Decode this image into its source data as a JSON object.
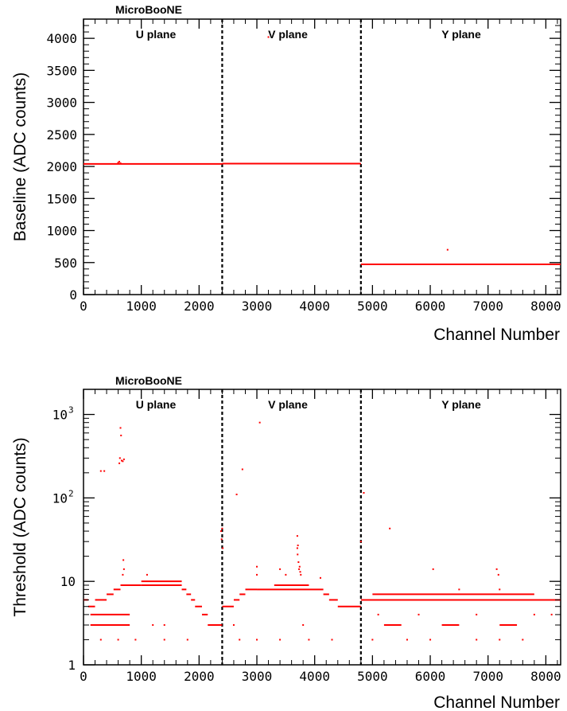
{
  "chart_data": [
    {
      "type": "scatter",
      "brand": "MicroBooNE",
      "xlabel": "Channel Number",
      "ylabel": "Baseline (ADC counts)",
      "xlim": [
        0,
        8256
      ],
      "ylim": [
        0,
        4300
      ],
      "yscale": "linear",
      "xticks": [
        "0",
        "1000",
        "2000",
        "3000",
        "4000",
        "5000",
        "6000",
        "7000",
        "8000"
      ],
      "yticks": [
        "0",
        "500",
        "1000",
        "1500",
        "2000",
        "2500",
        "3000",
        "3500",
        "4000"
      ],
      "plane_boundaries": [
        2400,
        4800
      ],
      "planes": [
        "U plane",
        "V plane",
        "Y plane"
      ],
      "marker_color": "#ff0000",
      "series": [
        {
          "segments": [
            {
              "x": [
                0,
                2400
              ],
              "y": 2040
            },
            {
              "x": [
                2400,
                4800
              ],
              "y": 2045
            },
            {
              "x": [
                4800,
                8256
              ],
              "y": 473
            }
          ],
          "points": [
            [
              600,
              2060
            ],
            [
              620,
              2075
            ],
            [
              640,
              2050
            ],
            [
              3200,
              4020
            ],
            [
              6300,
              700
            ]
          ]
        }
      ]
    },
    {
      "type": "scatter",
      "brand": "MicroBooNE",
      "xlabel": "Channel Number",
      "ylabel": "Threshold (ADC counts)",
      "xlim": [
        0,
        8256
      ],
      "ylim": [
        1,
        2000
      ],
      "yscale": "log",
      "xticks": [
        "0",
        "1000",
        "2000",
        "3000",
        "4000",
        "5000",
        "6000",
        "7000",
        "8000"
      ],
      "yticks": [
        {
          "v": 1,
          "label": "1"
        },
        {
          "v": 10,
          "label": "10"
        },
        {
          "v": 100,
          "label": "10",
          "sup": "2"
        },
        {
          "v": 1000,
          "label": "10",
          "sup": "3"
        }
      ],
      "plane_boundaries": [
        2400,
        4800
      ],
      "planes": [
        "U plane",
        "V plane",
        "Y plane"
      ],
      "marker_color": "#ff0000",
      "series": [
        {
          "segments": [
            {
              "x": [
                0,
                80
              ],
              "y": 6
            },
            {
              "x": [
                80,
                200
              ],
              "y": 5
            },
            {
              "x": [
                200,
                400
              ],
              "y": 6
            },
            {
              "x": [
                400,
                520
              ],
              "y": 7
            },
            {
              "x": [
                520,
                640
              ],
              "y": 8
            },
            {
              "x": [
                640,
                1000
              ],
              "y": 9
            },
            {
              "x": [
                1000,
                1700
              ],
              "y": 10
            },
            {
              "x": [
                1000,
                1700
              ],
              "y": 9
            },
            {
              "x": [
                1700,
                1780
              ],
              "y": 8
            },
            {
              "x": [
                1780,
                1860
              ],
              "y": 7
            },
            {
              "x": [
                1860,
                1930
              ],
              "y": 6
            },
            {
              "x": [
                1930,
                2050
              ],
              "y": 5
            },
            {
              "x": [
                2050,
                2150
              ],
              "y": 4
            },
            {
              "x": [
                2150,
                2400
              ],
              "y": 3
            },
            {
              "x": [
                2400,
                2600
              ],
              "y": 5
            },
            {
              "x": [
                2600,
                2700
              ],
              "y": 6
            },
            {
              "x": [
                2700,
                2800
              ],
              "y": 7
            },
            {
              "x": [
                2800,
                3000
              ],
              "y": 8
            },
            {
              "x": [
                3000,
                4150
              ],
              "y": 8
            },
            {
              "x": [
                3300,
                3900
              ],
              "y": 9
            },
            {
              "x": [
                4150,
                4250
              ],
              "y": 7
            },
            {
              "x": [
                4250,
                4400
              ],
              "y": 6
            },
            {
              "x": [
                4400,
                4800
              ],
              "y": 5
            },
            {
              "x": [
                4800,
                8256
              ],
              "y": 6
            },
            {
              "x": [
                120,
                800
              ],
              "y": 4
            },
            {
              "x": [
                120,
                800
              ],
              "y": 3
            },
            {
              "x": [
                5200,
                5500
              ],
              "y": 3
            },
            {
              "x": [
                6200,
                6500
              ],
              "y": 3
            },
            {
              "x": [
                7200,
                7500
              ],
              "y": 3
            },
            {
              "x": [
                5000,
                7800
              ],
              "y": 7
            }
          ],
          "points": [
            [
              300,
              210
            ],
            [
              360,
              210
            ],
            [
              640,
              690
            ],
            [
              650,
              560
            ],
            [
              620,
              260
            ],
            [
              630,
              300
            ],
            [
              660,
              280
            ],
            [
              680,
              275
            ],
            [
              700,
              290
            ],
            [
              690,
              18
            ],
            [
              700,
              14
            ],
            [
              680,
              12
            ],
            [
              1100,
              12
            ],
            [
              300,
              2
            ],
            [
              600,
              2
            ],
            [
              900,
              2
            ],
            [
              1400,
              2
            ],
            [
              1800,
              2
            ],
            [
              1200,
              3
            ],
            [
              1400,
              3
            ],
            [
              2380,
              40
            ],
            [
              2400,
              43
            ],
            [
              2390,
              32
            ],
            [
              2410,
              25
            ],
            [
              2650,
              110
            ],
            [
              2750,
              220
            ],
            [
              3050,
              800
            ],
            [
              3000,
              15
            ],
            [
              3000,
              12
            ],
            [
              3700,
              35
            ],
            [
              3710,
              27
            ],
            [
              3700,
              25
            ],
            [
              3705,
              21
            ],
            [
              3720,
              17
            ],
            [
              3740,
              15
            ],
            [
              3730,
              14
            ],
            [
              3750,
              13
            ],
            [
              3760,
              12
            ],
            [
              3500,
              12
            ],
            [
              3400,
              14
            ],
            [
              2700,
              2
            ],
            [
              3000,
              2
            ],
            [
              3400,
              2
            ],
            [
              3900,
              2
            ],
            [
              4300,
              2
            ],
            [
              2600,
              3
            ],
            [
              3800,
              3
            ],
            [
              4100,
              11
            ],
            [
              4800,
              30
            ],
            [
              4850,
              115
            ],
            [
              5300,
              43
            ],
            [
              6050,
              14
            ],
            [
              6500,
              8
            ],
            [
              7150,
              14
            ],
            [
              7180,
              12
            ],
            [
              7200,
              8
            ],
            [
              5000,
              2
            ],
            [
              5600,
              2
            ],
            [
              6000,
              2
            ],
            [
              6800,
              2
            ],
            [
              7200,
              2
            ],
            [
              7600,
              2
            ],
            [
              5100,
              4
            ],
            [
              5800,
              4
            ],
            [
              6800,
              4
            ],
            [
              7800,
              4
            ],
            [
              8100,
              4
            ]
          ]
        }
      ]
    }
  ]
}
